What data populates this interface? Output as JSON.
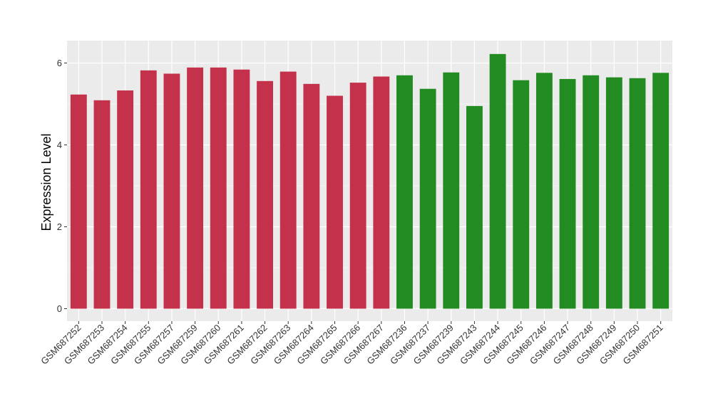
{
  "chart_data": {
    "type": "bar",
    "title": "",
    "xlabel": "",
    "ylabel": "Expression Level",
    "ylim": [
      0,
      6.5
    ],
    "yticks": [
      0,
      2,
      4,
      6
    ],
    "grid": true,
    "legend": "none",
    "categories": [
      "GSM687252",
      "GSM687253",
      "GSM687254",
      "GSM687255",
      "GSM687257",
      "GSM687259",
      "GSM687260",
      "GSM687261",
      "GSM687262",
      "GSM687263",
      "GSM687264",
      "GSM687265",
      "GSM687266",
      "GSM687267",
      "GSM687236",
      "GSM687237",
      "GSM687239",
      "GSM687243",
      "GSM687244",
      "GSM687245",
      "GSM687246",
      "GSM687247",
      "GSM687248",
      "GSM687249",
      "GSM687250",
      "GSM687251"
    ],
    "values": [
      5.23,
      5.09,
      5.33,
      5.82,
      5.74,
      5.89,
      5.89,
      5.84,
      5.56,
      5.79,
      5.49,
      5.2,
      5.52,
      5.67,
      5.7,
      5.37,
      5.77,
      4.95,
      6.22,
      5.58,
      5.76,
      5.61,
      5.7,
      5.65,
      5.63,
      5.76
    ],
    "groups": [
      "a",
      "a",
      "a",
      "a",
      "a",
      "a",
      "a",
      "a",
      "a",
      "a",
      "a",
      "a",
      "a",
      "a",
      "b",
      "b",
      "b",
      "b",
      "b",
      "b",
      "b",
      "b",
      "b",
      "b",
      "b",
      "b"
    ],
    "colors": {
      "a": "#c4314b",
      "b": "#228b22",
      "panel": "#ebebeb",
      "grid": "#ffffff",
      "text": "#333333"
    }
  }
}
